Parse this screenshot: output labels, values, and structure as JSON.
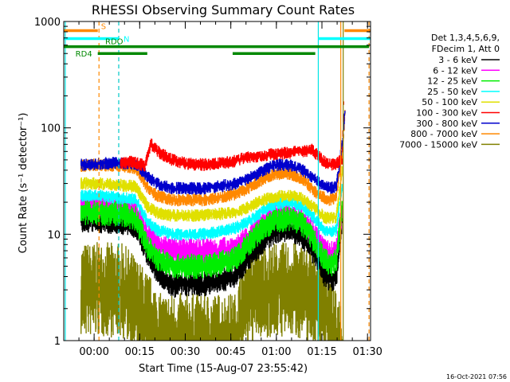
{
  "chart_data": {
    "type": "line",
    "title": "RHESSI Observing Summary Count Rates",
    "xlabel": "Start Time (15-Aug-07 23:55:42)",
    "ylabel": "Count Rate (s⁻¹ detector⁻¹)",
    "x_unit": "minutes after start time",
    "xlim": [
      -5.7,
      95.3
    ],
    "ylim": [
      1,
      1000
    ],
    "y_scale": "log",
    "x_ticks": [
      {
        "value": 4.3,
        "label": "00:00"
      },
      {
        "value": 19.3,
        "label": "00:15"
      },
      {
        "value": 34.3,
        "label": "00:30"
      },
      {
        "value": 49.3,
        "label": "00:45"
      },
      {
        "value": 64.3,
        "label": "01:00"
      },
      {
        "value": 79.3,
        "label": "01:15"
      },
      {
        "value": 94.3,
        "label": "01:30"
      }
    ],
    "y_ticks": [
      {
        "value": 1,
        "label": "1"
      },
      {
        "value": 10,
        "label": "10"
      },
      {
        "value": 100,
        "label": "100"
      },
      {
        "value": 1000,
        "label": "1000"
      }
    ],
    "legend_header": [
      "Det 1,3,4,5,6,9,",
      "FDecim 1, Att 0"
    ],
    "legend_placement": "right",
    "series": [
      {
        "name": "3 - 6 keV",
        "color": "#000000",
        "x": [
          0,
          5,
          13,
          18,
          22,
          25,
          30,
          35,
          40,
          45,
          51,
          55,
          60,
          64,
          69,
          73,
          77,
          80,
          82,
          84,
          86
        ],
        "values": [
          13.5,
          13.5,
          13,
          12,
          6.5,
          4.5,
          3.3,
          3.4,
          3.4,
          3.6,
          4.2,
          6,
          8.5,
          10.8,
          11,
          9.5,
          6.5,
          4.2,
          3.8,
          3.9,
          15
        ]
      },
      {
        "name": "6 - 12 keV",
        "color": "#ff00ff",
        "x": [
          0,
          5,
          13,
          18,
          22,
          25,
          30,
          35,
          40,
          45,
          51,
          55,
          60,
          64,
          69,
          73,
          77,
          80,
          82,
          84,
          86
        ],
        "values": [
          19,
          19,
          18,
          17,
          10,
          8,
          7,
          7,
          7,
          7,
          7.5,
          9,
          13,
          15.5,
          16,
          14,
          10,
          7,
          6.5,
          6.8,
          17
        ]
      },
      {
        "name": "12 - 25 keV",
        "color": "#00ee00",
        "x": [
          0,
          5,
          13,
          18,
          22,
          25,
          30,
          35,
          40,
          45,
          51,
          55,
          60,
          64,
          69,
          73,
          77,
          80,
          82,
          84,
          86
        ],
        "values": [
          16,
          16,
          15.5,
          14,
          7.5,
          6,
          5,
          5,
          5,
          5.2,
          6,
          8,
          11.5,
          13.5,
          14,
          12.5,
          8.5,
          5.8,
          5.2,
          5.6,
          18
        ]
      },
      {
        "name": "25 - 50 keV",
        "color": "#00ffff",
        "x": [
          0,
          5,
          13,
          18,
          22,
          25,
          30,
          35,
          40,
          45,
          51,
          55,
          60,
          64,
          69,
          73,
          77,
          80,
          82,
          84,
          86
        ],
        "values": [
          23,
          23,
          22,
          21,
          13,
          11,
          10,
          10,
          10,
          10.5,
          11.5,
          13,
          17,
          19.5,
          20,
          18,
          14,
          11,
          10.5,
          10.8,
          30
        ]
      },
      {
        "name": "50 - 100 keV",
        "color": "#e0e000",
        "x": [
          0,
          5,
          13,
          18,
          22,
          25,
          30,
          35,
          40,
          45,
          51,
          55,
          60,
          64,
          69,
          73,
          77,
          80,
          82,
          84,
          86
        ],
        "values": [
          30,
          30,
          29,
          28,
          18,
          16,
          15,
          15,
          15,
          15.5,
          16,
          18,
          21,
          22.5,
          23,
          21.5,
          17.5,
          14.5,
          14,
          14.5,
          40
        ]
      },
      {
        "name": "100 - 300 keV",
        "color": "#ff0000",
        "x": [
          13,
          17,
          21,
          23,
          26,
          30,
          35,
          40,
          45,
          50,
          53,
          76,
          80,
          82,
          84,
          86,
          86.5
        ],
        "values": [
          47,
          48,
          44,
          70,
          58,
          50,
          46,
          45,
          46,
          48,
          52,
          62,
          48,
          45,
          46,
          50,
          200
        ]
      },
      {
        "name": "300 - 800 keV",
        "color": "#0000cc",
        "x": [
          0,
          5,
          13,
          18,
          22,
          25,
          30,
          35,
          40,
          45,
          51,
          55,
          60,
          64,
          69,
          73,
          77,
          80,
          82,
          84,
          86,
          87
        ],
        "values": [
          45,
          46,
          47,
          45,
          35,
          30,
          27,
          27,
          27,
          28,
          30,
          33,
          40,
          45,
          44,
          40,
          33,
          28,
          27,
          28,
          70,
          160
        ]
      },
      {
        "name": "800 - 7000 keV",
        "color": "#ff8800",
        "x": [
          0,
          5,
          13,
          18,
          22,
          25,
          30,
          35,
          40,
          45,
          51,
          55,
          60,
          64,
          69,
          73,
          77,
          80,
          82,
          84,
          86,
          87
        ],
        "values": [
          44,
          45,
          44,
          42,
          27,
          23,
          21,
          21,
          21,
          22,
          24,
          27,
          33,
          37,
          37,
          33,
          25,
          22,
          21,
          22,
          60,
          150
        ]
      },
      {
        "name": "7000 - 15000 keV",
        "color": "#808000",
        "x": [
          0,
          6,
          13,
          16,
          18,
          21,
          24,
          26,
          30,
          35,
          40,
          45,
          51,
          53,
          57,
          62,
          66,
          70,
          73,
          76,
          80,
          84,
          86
        ],
        "values": [
          3,
          3,
          3,
          2.6,
          2.2,
          1.7,
          1.3,
          1,
          1,
          1,
          1,
          1,
          1,
          2,
          2.8,
          3,
          3,
          3,
          2.9,
          2.6,
          2.2,
          1,
          1
        ]
      }
    ],
    "vertical_lines": [
      {
        "x": -5.2,
        "color": "#00e5e5",
        "style": "solid"
      },
      {
        "x": 5.9,
        "color": "#ff8800",
        "style": "dashed"
      },
      {
        "x": 12.4,
        "color": "#00c8c8",
        "style": "dashed"
      },
      {
        "x": 78.1,
        "color": "#00e5e5",
        "style": "solid"
      },
      {
        "x": 85.5,
        "color": "#ff8800",
        "style": "solid"
      },
      {
        "x": 86.3,
        "color": "#808000",
        "style": "solid"
      },
      {
        "x": 94.8,
        "color": "#ff8800",
        "style": "dashed"
      }
    ],
    "annotation_bars": [
      {
        "label": "S",
        "color": "#ff8800",
        "y": 820,
        "segments": [
          [
            -5.7,
            5.5
          ],
          [
            86.7,
            95.3
          ]
        ]
      },
      {
        "label": "N",
        "color": "#00ffff",
        "y": 690,
        "segments": [
          [
            -5.7,
            12.4
          ],
          [
            78.1,
            95.3
          ]
        ]
      },
      {
        "label": "RDO",
        "color": "#008800",
        "y": 580,
        "segments": [
          [
            -5.7,
            94.8
          ]
        ]
      },
      {
        "label": "RD4",
        "color": "#008800",
        "y": 500,
        "segments": [
          [
            5.5,
            21.8
          ],
          [
            49.9,
            77.1
          ]
        ]
      }
    ]
  },
  "timestamp": "16-Oct-2021 07:56"
}
